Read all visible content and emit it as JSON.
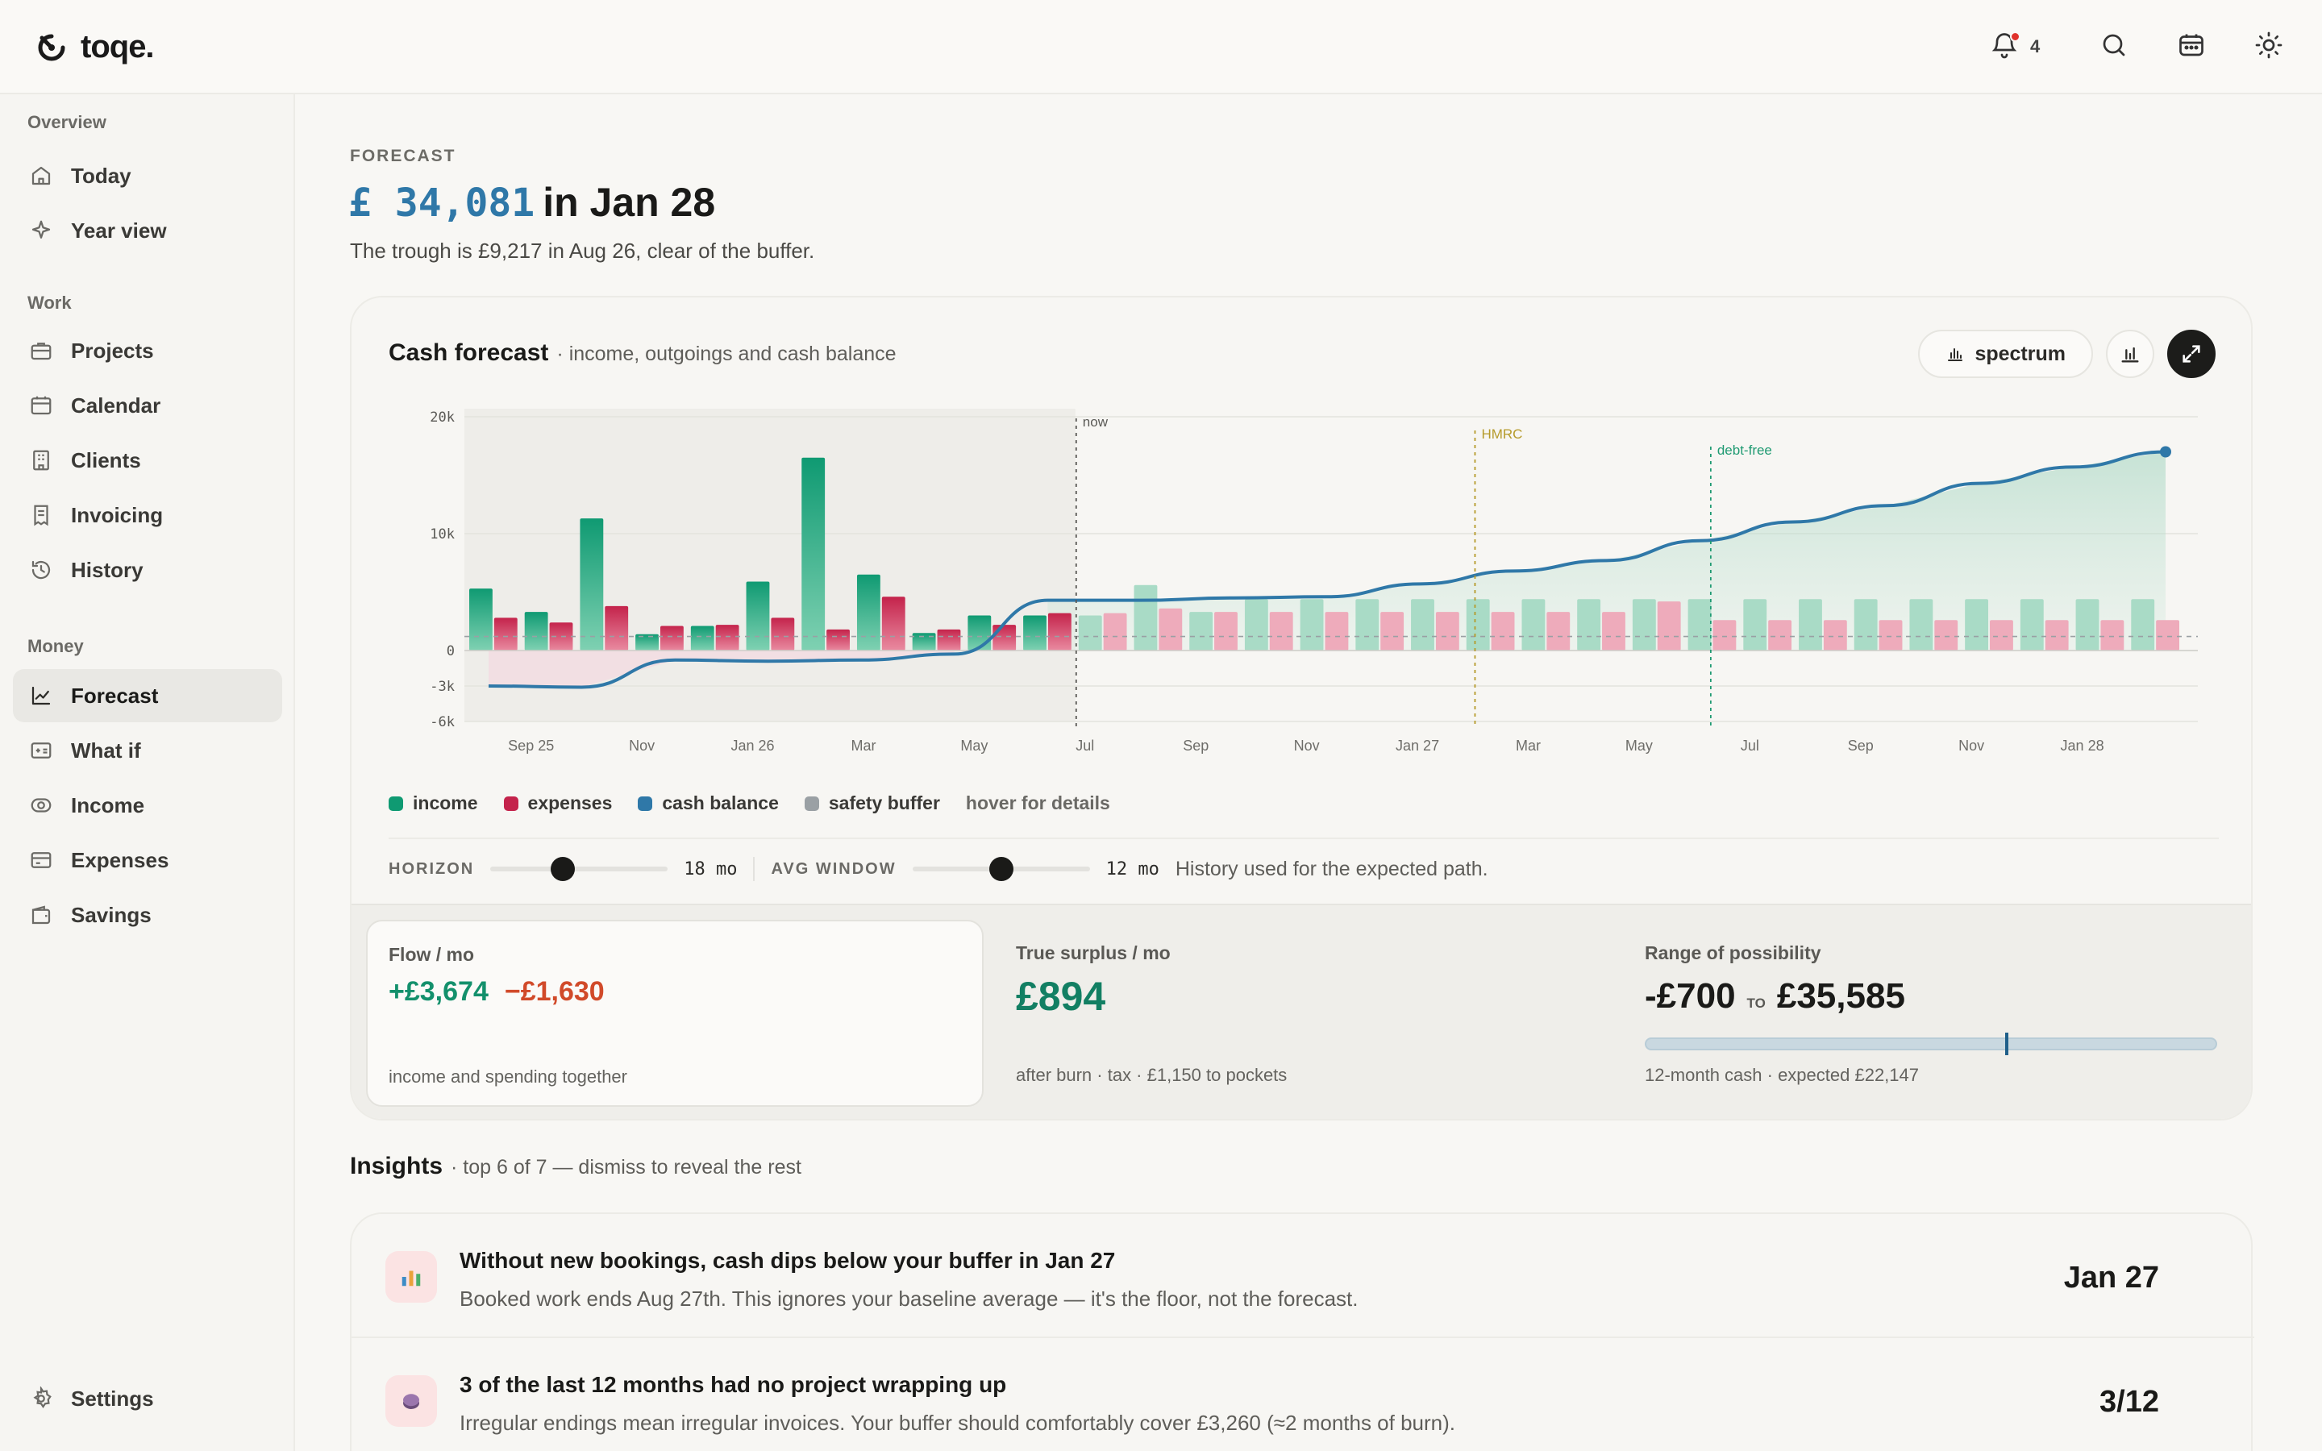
{
  "app": {
    "name": "toqe."
  },
  "topbar": {
    "notification_count": "4"
  },
  "sidebar": {
    "groups": [
      {
        "label": "Overview",
        "items": [
          "Today",
          "Year view"
        ]
      },
      {
        "label": "Work",
        "items": [
          "Projects",
          "Calendar",
          "Clients",
          "Invoicing",
          "History"
        ]
      },
      {
        "label": "Money",
        "items": [
          "Forecast",
          "What if",
          "Income",
          "Expenses",
          "Savings"
        ]
      }
    ],
    "settings": "Settings",
    "active": "Forecast"
  },
  "header": {
    "eyebrow": "FORECAST",
    "amount": "£ 34,081",
    "suffix": "in Jan 28",
    "subline": "The trough is £9,217 in Aug 26, clear of the buffer."
  },
  "card": {
    "title": "Cash forecast",
    "subtitle": "· income, outgoings and cash balance",
    "mode_button": "spectrum"
  },
  "chart_data": {
    "type": "bar",
    "title": "Cash forecast",
    "y_ticks": [
      "20k",
      "10k",
      "0",
      "-3k",
      "-6k"
    ],
    "x_ticks": [
      "Sep 25",
      "Nov",
      "Jan 26",
      "Mar",
      "May",
      "Jul",
      "Sep",
      "Nov",
      "Jan 27",
      "Mar",
      "May",
      "Jul",
      "Sep",
      "Nov",
      "Jan 28"
    ],
    "ylim": [
      -6000,
      20000
    ],
    "income_actual": [
      5300,
      3300,
      11300,
      1400,
      2100,
      5900,
      16500,
      6500,
      1500,
      3000,
      3000
    ],
    "expenses_actual": [
      2800,
      2400,
      3800,
      2100,
      2200,
      2800,
      1800,
      4600,
      1800,
      2200,
      3200
    ],
    "income_forecast": [
      3000,
      5600,
      3300,
      4400,
      4400,
      4400,
      4400,
      4400,
      4400,
      4400,
      4400,
      4400,
      4400,
      4400,
      4400,
      4400,
      4400,
      4400,
      4400,
      4400
    ],
    "expenses_forecast": [
      3200,
      3600,
      3300,
      3300,
      3300,
      3300,
      3300,
      3300,
      3300,
      3300,
      4200,
      2600,
      2600,
      2600,
      2600,
      2600,
      2600,
      2600,
      2600,
      2600
    ],
    "cash_balance": [
      -3000,
      -3100,
      -800,
      -900,
      -800,
      -300,
      4300,
      4300,
      4500,
      4600,
      5700,
      6800,
      7700,
      9400,
      11000,
      12400,
      14300,
      15700,
      17000
    ],
    "markers": [
      {
        "label": "now",
        "x": "Aug 26"
      },
      {
        "label": "HMRC",
        "x": "Jan 27"
      },
      {
        "label": "debt-free",
        "x": "May 27"
      }
    ],
    "legend": [
      "income",
      "expenses",
      "cash balance",
      "safety buffer"
    ],
    "legend_hint": "hover for details",
    "colors": {
      "income": "#0f9a72",
      "expenses": "#c4234b",
      "cash_balance": "#2f78a8",
      "safety_buffer": "#9aa0a4"
    }
  },
  "controls": {
    "horizon_label": "HORIZON",
    "horizon_value": "18 mo",
    "horizon_fraction": 0.41,
    "avg_label": "AVG WINDOW",
    "avg_value": "12 mo",
    "avg_fraction": 0.5,
    "note": "History used for the expected path."
  },
  "stats": {
    "flow": {
      "title": "Flow / mo",
      "in": "+£3,674",
      "out": "−£1,630",
      "foot": "income and spending together"
    },
    "surplus": {
      "title": "True surplus / mo",
      "value": "£894",
      "foot": "after burn · tax · £1,150 to pockets"
    },
    "range": {
      "title": "Range of possibility",
      "low": "-£700",
      "to": "TO",
      "high": "£35,585",
      "foot": "12-month cash · expected £22,147",
      "expected_fraction": 0.63
    }
  },
  "insights": {
    "title": "Insights",
    "subtitle": "· top 6 of 7 — dismiss to reveal the rest",
    "items": [
      {
        "icon": "bar-chart-icon",
        "title": "Without new bookings, cash dips below your buffer in Jan 27",
        "desc": "Booked work ends Aug 27th. This ignores your baseline average — it's the floor, not the forecast.",
        "value": "Jan 27"
      },
      {
        "icon": "coin-icon",
        "title": "3 of the last 12 months had no project wrapping up",
        "desc": "Irregular endings mean irregular invoices. Your buffer should comfortably cover £3,260 (≈2 months of burn).",
        "value": "3/12"
      }
    ]
  }
}
